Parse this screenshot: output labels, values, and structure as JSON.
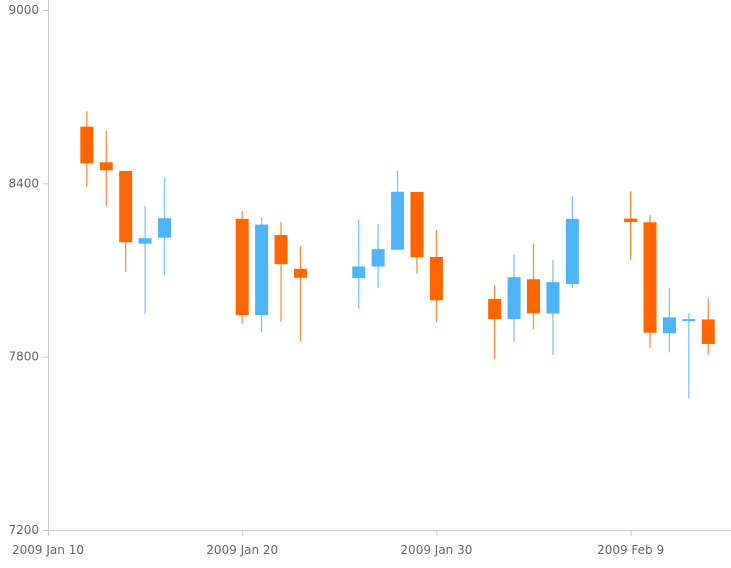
{
  "chart_data": {
    "type": "candlestick",
    "title": "",
    "xlabel": "",
    "ylabel": "",
    "ylim": [
      7200,
      9000
    ],
    "xlim": [
      "2009-01-10",
      "2009-02-14"
    ],
    "y_ticks": [
      "7200",
      "7800",
      "8400",
      "9000"
    ],
    "x_ticks": [
      {
        "date": "2009-01-10",
        "label": "2009 Jan 10"
      },
      {
        "date": "2009-01-20",
        "label": "2009 Jan 20"
      },
      {
        "date": "2009-01-30",
        "label": "2009 Jan 30"
      },
      {
        "date": "2009-02-09",
        "label": "2009 Feb 9"
      }
    ],
    "grid": false,
    "colors": {
      "up": "#4fb3f8",
      "down": "#ff6600",
      "axis": "#cccccc",
      "text": "#666666"
    },
    "candles": [
      {
        "date": "2009-01-12",
        "open": 8596,
        "high": 8650,
        "low": 8388,
        "close": 8469
      },
      {
        "date": "2009-01-13",
        "open": 8473,
        "high": 8581,
        "low": 8322,
        "close": 8445
      },
      {
        "date": "2009-01-14",
        "open": 8443,
        "high": 8443,
        "low": 8094,
        "close": 8196
      },
      {
        "date": "2009-01-15",
        "open": 8191,
        "high": 8322,
        "low": 7947,
        "close": 8210
      },
      {
        "date": "2009-01-16",
        "open": 8212,
        "high": 8420,
        "low": 8083,
        "close": 8279
      },
      {
        "date": "2009-01-20",
        "open": 8277,
        "high": 8304,
        "low": 7915,
        "close": 7944
      },
      {
        "date": "2009-01-21",
        "open": 7944,
        "high": 8282,
        "low": 7886,
        "close": 8257
      },
      {
        "date": "2009-01-22",
        "open": 8221,
        "high": 8267,
        "low": 7921,
        "close": 8120
      },
      {
        "date": "2009-01-23",
        "open": 8104,
        "high": 8183,
        "low": 7852,
        "close": 8073
      },
      {
        "date": "2009-01-26",
        "open": 8072,
        "high": 8273,
        "low": 7966,
        "close": 8112
      },
      {
        "date": "2009-01-27",
        "open": 8112,
        "high": 8259,
        "low": 8039,
        "close": 8172
      },
      {
        "date": "2009-01-28",
        "open": 8170,
        "high": 8443,
        "low": 8170,
        "close": 8371
      },
      {
        "date": "2009-01-29",
        "open": 8370,
        "high": 8370,
        "low": 8087,
        "close": 8144
      },
      {
        "date": "2009-01-30",
        "open": 8145,
        "high": 8238,
        "low": 7920,
        "close": 7995
      },
      {
        "date": "2009-02-02",
        "open": 8000,
        "high": 8048,
        "low": 7791,
        "close": 7930
      },
      {
        "date": "2009-02-03",
        "open": 7930,
        "high": 8152,
        "low": 7850,
        "close": 8075
      },
      {
        "date": "2009-02-04",
        "open": 8068,
        "high": 8192,
        "low": 7895,
        "close": 7950
      },
      {
        "date": "2009-02-05",
        "open": 7949,
        "high": 8135,
        "low": 7806,
        "close": 8058
      },
      {
        "date": "2009-02-06",
        "open": 8051,
        "high": 8356,
        "low": 8039,
        "close": 8277
      },
      {
        "date": "2009-02-09",
        "open": 8278,
        "high": 8373,
        "low": 8134,
        "close": 8266
      },
      {
        "date": "2009-02-10",
        "open": 8265,
        "high": 8290,
        "low": 7831,
        "close": 7883
      },
      {
        "date": "2009-02-11",
        "open": 7881,
        "high": 8038,
        "low": 7815,
        "close": 7936
      },
      {
        "date": "2009-02-12",
        "open": 7926,
        "high": 7950,
        "low": 7657,
        "close": 7930
      },
      {
        "date": "2009-02-13",
        "open": 7929,
        "high": 8002,
        "low": 7808,
        "close": 7844
      }
    ]
  }
}
